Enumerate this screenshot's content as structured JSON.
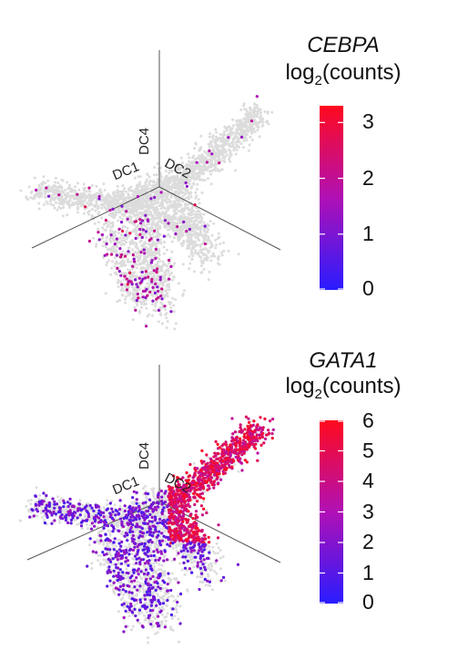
{
  "colors": {
    "background_cells": "#dcdcdc",
    "axis_lines": "#555555",
    "low": "#2a1cff",
    "mid": "#b010b5",
    "high": "#ff0a1e"
  },
  "chart_data": [
    {
      "type": "scatter",
      "subtype": "3d-diffusion-map",
      "title": "CEBPA",
      "unit_prefix": "log",
      "unit_sub": "2",
      "unit_suffix": "(counts)",
      "axes": [
        "DC4",
        "DC1",
        "DC2"
      ],
      "colorbar": {
        "min": 0,
        "max": 3.3,
        "ticks": [
          0,
          1,
          2,
          3
        ]
      },
      "expressing_fraction": 0.06,
      "max_value": 3.3
    },
    {
      "type": "scatter",
      "subtype": "3d-diffusion-map",
      "title": "GATA1",
      "unit_prefix": "log",
      "unit_sub": "2",
      "unit_suffix": "(counts)",
      "axes": [
        "DC4",
        "DC1",
        "DC2"
      ],
      "colorbar": {
        "min": 0,
        "max": 6,
        "ticks": [
          0,
          1,
          2,
          3,
          4,
          5,
          6
        ]
      },
      "expressing_fraction": 0.45,
      "max_value": 6
    }
  ]
}
